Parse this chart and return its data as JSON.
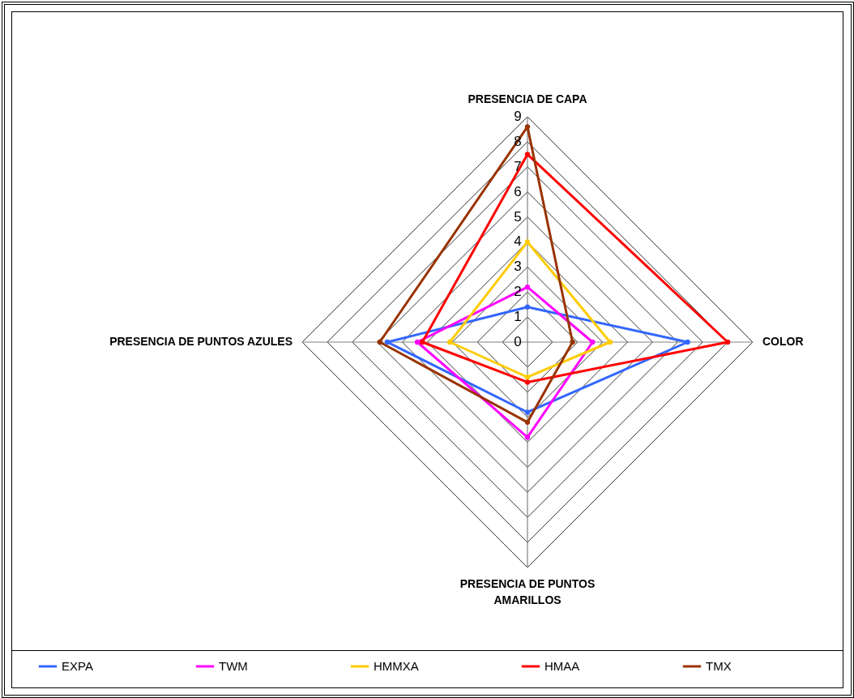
{
  "chart_data": {
    "type": "radar",
    "categories": [
      "PRESENCIA DE CAPA",
      "COLOR",
      "PRESENCIA DE PUNTOS AMARILLOS",
      "PRESENCIA DE PUNTOS AZULES"
    ],
    "series": [
      {
        "name": "EXPA",
        "color": "#3366ff",
        "values": [
          1.4,
          6.4,
          2.8,
          5.6
        ]
      },
      {
        "name": "TWM",
        "color": "#ff00ff",
        "values": [
          2.2,
          2.6,
          3.8,
          4.4
        ]
      },
      {
        "name": "HMMXA",
        "color": "#ffcc00",
        "values": [
          4.0,
          3.3,
          1.4,
          3.1
        ]
      },
      {
        "name": "HMAA",
        "color": "#ff0000",
        "values": [
          7.5,
          8.0,
          1.6,
          4.2
        ]
      },
      {
        "name": "TMX",
        "color": "#993300",
        "values": [
          8.6,
          1.8,
          3.2,
          5.9
        ]
      }
    ],
    "ylim": [
      0,
      9
    ],
    "yticks": [
      0,
      1,
      2,
      3,
      4,
      5,
      6,
      7,
      8,
      9
    ],
    "grid": true,
    "legend": "bottom",
    "marker": "circle",
    "line_style": "solid"
  }
}
